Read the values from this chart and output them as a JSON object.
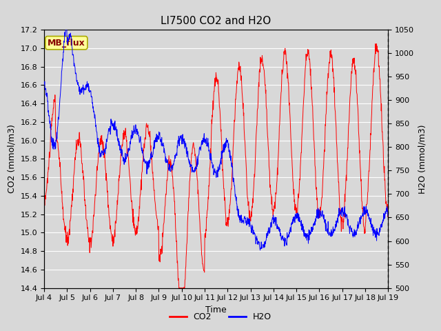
{
  "title": "LI7500 CO2 and H2O",
  "xlabel": "Time",
  "ylabel_left": "CO2 (mmol/m3)",
  "ylabel_right": "H2O (mmol/m3)",
  "co2_ylim": [
    14.4,
    17.2
  ],
  "h2o_ylim": [
    500,
    1050
  ],
  "co2_yticks": [
    14.4,
    14.6,
    14.8,
    15.0,
    15.2,
    15.4,
    15.6,
    15.8,
    16.0,
    16.2,
    16.4,
    16.6,
    16.8,
    17.0,
    17.2
  ],
  "h2o_yticks": [
    500,
    550,
    600,
    650,
    700,
    750,
    800,
    850,
    900,
    950,
    1000,
    1050
  ],
  "xtick_labels": [
    "Jul 4",
    "Jul 5",
    "Jul 6",
    "Jul 7",
    "Jul 8",
    "Jul 9",
    "Jul 10",
    "Jul 11",
    "Jul 12",
    "Jul 13",
    "Jul 14",
    "Jul 15",
    "Jul 16",
    "Jul 17",
    "Jul 18",
    "Jul 19"
  ],
  "co2_color": "#FF0000",
  "h2o_color": "#0000FF",
  "bg_color": "#D8D8D8",
  "annotation_text": "MB_flux",
  "annotation_bg": "#FFFF99",
  "annotation_border": "#AAAA00",
  "annotation_text_color": "#880000",
  "legend_co2": "CO2",
  "legend_h2o": "H2O",
  "title_fontsize": 11,
  "axis_fontsize": 9,
  "tick_fontsize": 8
}
